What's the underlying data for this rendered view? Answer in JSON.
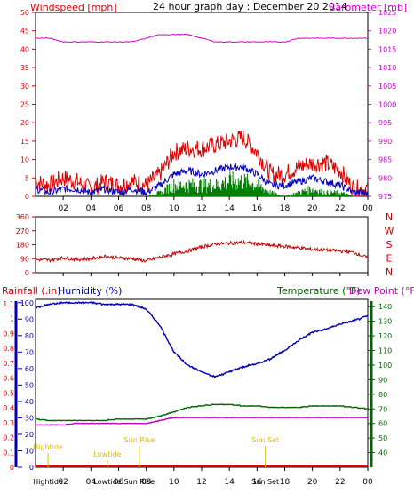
{
  "colors": {
    "wind": "#e00000",
    "gust": "#0000c0",
    "avg": "#008000",
    "baro": "#d000d0",
    "dir": "#c00000",
    "rain": "#e00000",
    "hum": "#0000b0",
    "temp": "#006400",
    "dew": "#c000c0",
    "sun": "#d8c000",
    "axis": "#000000"
  },
  "chart_data": [
    {
      "type": "line",
      "title": "24 hour graph day : December 20 2014",
      "ylabel_left": "Windspeed [mph]",
      "ylabel_right": "Barometer [mb]",
      "x_ticks": [
        "02",
        "04",
        "06",
        "08",
        "10",
        "12",
        "14",
        "16",
        "18",
        "20",
        "22",
        "00"
      ],
      "ylim": [
        0,
        50
      ],
      "y_ticks": [
        0,
        5,
        10,
        15,
        20,
        25,
        30,
        35,
        40,
        45,
        50
      ],
      "ylim_right": [
        975,
        1025
      ],
      "y_ticks_right": [
        975,
        980,
        985,
        990,
        995,
        1000,
        1005,
        1010,
        1015,
        1020,
        1025
      ],
      "x": [
        0,
        1,
        2,
        3,
        4,
        5,
        6,
        7,
        8,
        9,
        10,
        11,
        12,
        13,
        14,
        15,
        16,
        17,
        18,
        19,
        20,
        21,
        22,
        23,
        24
      ],
      "series": [
        {
          "key": "gust",
          "values": [
            4,
            3,
            5,
            4,
            2,
            4,
            3,
            4,
            3,
            6,
            12,
            13,
            13,
            14,
            15,
            16,
            12,
            6,
            6,
            8,
            9,
            9,
            7,
            2,
            2
          ]
        },
        {
          "key": "speed",
          "values": [
            2,
            1,
            2,
            2,
            1,
            2,
            1,
            2,
            1,
            3,
            6,
            7,
            6,
            7,
            8,
            8,
            6,
            3,
            3,
            4,
            5,
            4,
            3,
            1,
            1
          ]
        },
        {
          "key": "avg",
          "values": [
            0,
            0,
            0,
            0,
            0,
            0,
            0,
            0,
            0,
            1,
            3,
            3,
            3,
            3,
            4,
            4,
            3,
            1,
            0,
            1,
            2,
            1,
            1,
            0,
            0
          ]
        },
        {
          "key": "barometer",
          "values": [
            1018,
            1018,
            1017,
            1017,
            1017,
            1017,
            1017,
            1017,
            1018,
            1019,
            1019,
            1019,
            1018,
            1017,
            1017,
            1017,
            1017,
            1017,
            1017,
            1018,
            1018,
            1018,
            1018,
            1018,
            1018
          ]
        }
      ]
    },
    {
      "type": "line",
      "ylim": [
        0,
        360
      ],
      "y_ticks": [
        0,
        90,
        180,
        270,
        360
      ],
      "compass": [
        "N",
        "W",
        "S",
        "E",
        "N"
      ],
      "x_ticks": [
        "02",
        "04",
        "06",
        "08",
        "10",
        "12",
        "14",
        "16",
        "18",
        "20",
        "22",
        "00"
      ],
      "x": [
        0,
        1,
        2,
        3,
        4,
        5,
        6,
        7,
        8,
        9,
        10,
        11,
        12,
        13,
        14,
        15,
        16,
        17,
        18,
        19,
        20,
        21,
        22,
        23,
        24
      ],
      "series": [
        {
          "key": "direction",
          "values": [
            85,
            80,
            95,
            85,
            90,
            105,
            95,
            90,
            75,
            100,
            120,
            140,
            165,
            185,
            190,
            195,
            185,
            175,
            170,
            160,
            150,
            145,
            140,
            130,
            95
          ]
        }
      ]
    },
    {
      "type": "line",
      "ylabel_left": "Rainfall (.in)",
      "ylabel_left2": "Humidity (%)",
      "ylabel_right": "Temperature (°F)",
      "ylabel_right2": "Dew Point (°F)",
      "ylim": [
        0,
        1.0
      ],
      "y_ticks": [
        "0",
        "0.1",
        "0.2",
        "0.3",
        "0.4",
        "0.5",
        "0.6",
        "0.7",
        "0.8",
        "0.9",
        "1",
        "1.1"
      ],
      "y_ticks_hum": [
        "0",
        "10",
        "20",
        "30",
        "40",
        "50",
        "60",
        "70",
        "80",
        "90",
        "100"
      ],
      "ylim_right": [
        30,
        145
      ],
      "y_ticks_right": [
        "40",
        "50",
        "60",
        "70",
        "80",
        "90",
        "100",
        "110",
        "120",
        "130",
        "140"
      ],
      "x_ticks": [
        "02",
        "04",
        "06",
        "08",
        "10",
        "12",
        "14",
        "16",
        "18",
        "20",
        "22",
        "00"
      ],
      "x": [
        0,
        1,
        2,
        3,
        4,
        5,
        6,
        7,
        8,
        9,
        10,
        11,
        12,
        13,
        14,
        15,
        16,
        17,
        18,
        19,
        20,
        21,
        22,
        23,
        24
      ],
      "series": [
        {
          "key": "humidity",
          "values": [
            97,
            99,
            100,
            100,
            100,
            99,
            99,
            99,
            96,
            86,
            70,
            62,
            58,
            55,
            58,
            61,
            63,
            66,
            71,
            77,
            82,
            84,
            87,
            89,
            92
          ]
        },
        {
          "key": "temperature",
          "values": [
            63,
            62,
            62,
            62,
            62,
            62,
            63,
            63,
            63,
            65,
            68,
            71,
            72,
            73,
            73,
            72,
            72,
            71,
            71,
            71,
            72,
            72,
            72,
            71,
            70
          ]
        },
        {
          "key": "dewpoint",
          "values": [
            59,
            59,
            59,
            60,
            60,
            60,
            60,
            60,
            60,
            62,
            64,
            64,
            64,
            64,
            64,
            64,
            64,
            64,
            64,
            64,
            64,
            64,
            64,
            64,
            64
          ]
        },
        {
          "key": "rain",
          "values": [
            0,
            0,
            0,
            0,
            0,
            0,
            0,
            0,
            0,
            0,
            0,
            0,
            0,
            0,
            0,
            0,
            0,
            0,
            0,
            0,
            0,
            0,
            0,
            0,
            0
          ]
        }
      ],
      "annotations": {
        "high_tide": "Hightide",
        "low_tide": "Lowtide",
        "sun_rise": "Sun Rise",
        "sun_set": "Sun Set",
        "high_tide_x": 0.9,
        "low_tide_x": 5.2,
        "sun_rise_x": 7.5,
        "sun_set_x": 16.6
      }
    }
  ]
}
